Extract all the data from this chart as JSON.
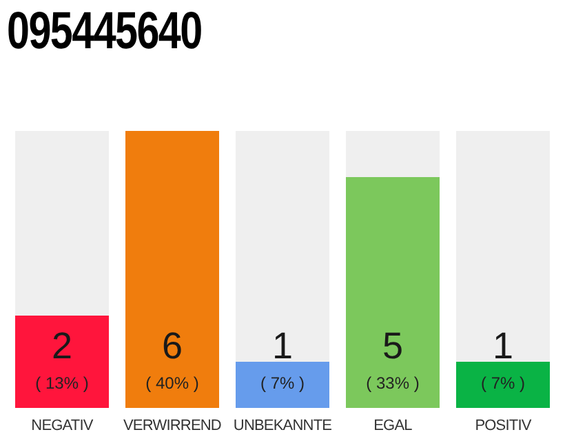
{
  "chart_data": {
    "type": "bar",
    "title": "095445640",
    "categories": [
      "NEGATIV",
      "VERWIRREND",
      "UNBEKANNTE",
      "EGAL",
      "POSITIV"
    ],
    "values": [
      2,
      6,
      1,
      5,
      1
    ],
    "colors": [
      "#ff153c",
      "#f07d0d",
      "#669cec",
      "#7cc85c",
      "#0ab345"
    ],
    "ylim": [
      0,
      6
    ],
    "tick_labels": "x",
    "data_labels": true,
    "grid": false,
    "annotations": [
      "( 13% )",
      "( 40% )",
      "( 7% )",
      "( 33% )",
      "( 7% )"
    ]
  }
}
